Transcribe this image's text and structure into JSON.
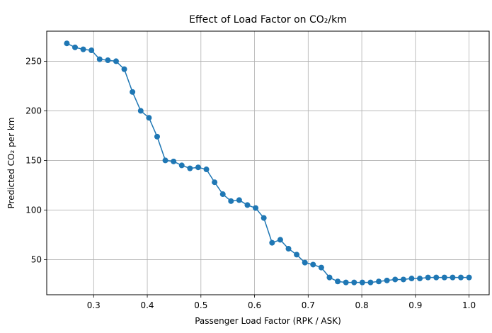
{
  "chart_data": {
    "type": "line",
    "title": "Effect of Load Factor on CO₂/km",
    "xlabel": "Passenger Load Factor (RPK / ASK)",
    "ylabel": "Predicted CO₂ per km",
    "xlim": [
      0.2125,
      1.0375
    ],
    "ylim": [
      14.6,
      280.3
    ],
    "xticks": [
      0.3,
      0.4,
      0.5,
      0.6,
      0.7,
      0.8,
      0.9,
      1.0
    ],
    "xtick_labels": [
      "0.3",
      "0.4",
      "0.5",
      "0.6",
      "0.7",
      "0.8",
      "0.9",
      "1.0"
    ],
    "yticks": [
      50,
      100,
      150,
      200,
      250
    ],
    "ytick_labels": [
      "50",
      "100",
      "150",
      "200",
      "250"
    ],
    "grid": true,
    "marker": "circle",
    "color": "#1f77b4",
    "series": [
      {
        "x": [
          0.25,
          0.2653,
          0.2806,
          0.2959,
          0.3112,
          0.3265,
          0.3418,
          0.3571,
          0.3724,
          0.3878,
          0.4031,
          0.4184,
          0.4337,
          0.449,
          0.4643,
          0.4796,
          0.4949,
          0.5102,
          0.5255,
          0.5408,
          0.5561,
          0.5714,
          0.5867,
          0.602,
          0.6173,
          0.6327,
          0.648,
          0.6633,
          0.6786,
          0.6939,
          0.7092,
          0.7245,
          0.7398,
          0.7551,
          0.7704,
          0.7857,
          0.801,
          0.8163,
          0.8316,
          0.8469,
          0.8622,
          0.8776,
          0.8929,
          0.9082,
          0.9235,
          0.9388,
          0.9541,
          0.9694,
          0.9847,
          1.0
        ],
        "values": [
          268,
          264,
          262,
          261,
          252,
          251,
          250,
          242,
          219,
          200,
          193,
          174,
          150,
          149,
          145,
          142,
          143,
          141,
          128,
          116,
          109,
          110,
          105,
          102,
          92,
          67,
          70,
          61,
          55,
          47,
          45,
          42,
          32,
          28,
          27,
          27,
          27,
          27,
          28,
          29,
          30,
          30,
          31,
          31,
          32,
          32,
          32,
          32,
          32,
          32
        ]
      }
    ]
  }
}
